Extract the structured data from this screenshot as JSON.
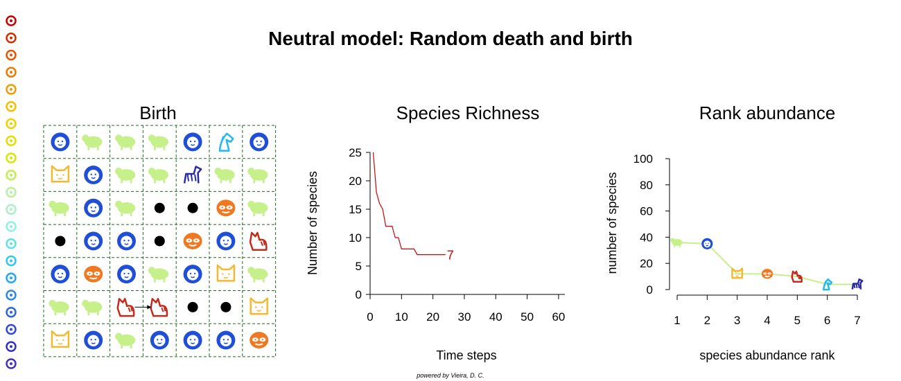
{
  "title": "Neutral model:  Random death and birth",
  "footer": "powered by Vieira, D. C.",
  "colors": {
    "grid_line": "#1b6b1b",
    "richness_line": "#cc0000",
    "rank_line": "#c6f08a"
  },
  "species_legend": {
    "colors": [
      "#cc0000",
      "#d92a00",
      "#e85500",
      "#f07a00",
      "#f59d00",
      "#f7bd00",
      "#f5d000",
      "#e8dc00",
      "#d8e600",
      "#c2ec55",
      "#b8f0a0",
      "#a8f0c8",
      "#8ef0e8",
      "#60e0f0",
      "#30c8f0",
      "#20a8f0",
      "#2a88e8",
      "#2a66e0",
      "#2d4ad8",
      "#3333cc",
      "#4433bb"
    ]
  },
  "chart_data": [
    {
      "type": "grid",
      "title": "Birth",
      "rows": 7,
      "cols": 7,
      "cells": [
        [
          "lion",
          "sheep",
          "sheep",
          "sheep",
          "lion",
          "horse",
          "lion"
        ],
        [
          "cat",
          "lion",
          "sheep",
          "sheep",
          "zebra",
          "sheep",
          "sheep"
        ],
        [
          "sheep",
          "lion",
          "sheep",
          "empty",
          "empty",
          "raccoon",
          "sheep"
        ],
        [
          "empty",
          "lion",
          "lion",
          "empty",
          "raccoon",
          "lion",
          "tiger"
        ],
        [
          "lion",
          "raccoon",
          "lion",
          "sheep",
          "lion",
          "cat",
          "sheep"
        ],
        [
          "sheep",
          "sheep",
          "tiger",
          "tiger",
          "empty",
          "empty",
          "cat"
        ],
        [
          "cat",
          "lion",
          "sheep",
          "lion",
          "lion",
          "lion",
          "raccoon"
        ]
      ],
      "birth_arrow": {
        "from": [
          5,
          2
        ],
        "to": [
          5,
          3
        ]
      }
    },
    {
      "type": "line",
      "title": "Species Richness",
      "xlabel": "Time steps",
      "ylabel": "Number of species",
      "xlim": [
        0,
        62
      ],
      "ylim": [
        0,
        25
      ],
      "xticks": [
        0,
        10,
        20,
        30,
        40,
        50,
        60
      ],
      "yticks": [
        0,
        5,
        10,
        15,
        20,
        25
      ],
      "x": [
        1,
        2,
        3,
        4,
        5,
        6,
        7,
        8,
        9,
        10,
        11,
        12,
        13,
        14,
        15,
        16,
        17,
        18,
        19,
        20,
        21,
        22,
        23,
        24
      ],
      "y": [
        25,
        18,
        16,
        15,
        12,
        12,
        12,
        10,
        10,
        8,
        8,
        8,
        8,
        8,
        7,
        7,
        7,
        7,
        7,
        7,
        7,
        7,
        7,
        7
      ],
      "end_label": "7"
    },
    {
      "type": "line",
      "title": "Rank abundance",
      "xlabel": "species abundance rank",
      "ylabel": "number of species",
      "xlim": [
        1,
        7
      ],
      "ylim": [
        0,
        100
      ],
      "xticks": [
        1,
        2,
        3,
        4,
        5,
        6,
        7
      ],
      "yticks": [
        0,
        20,
        40,
        60,
        80,
        100
      ],
      "x": [
        1,
        2,
        3,
        4,
        5,
        6,
        7
      ],
      "y": [
        36,
        35,
        12,
        12,
        10,
        4,
        4
      ],
      "markers": [
        "sheep",
        "lion",
        "cat",
        "raccoon",
        "tiger",
        "horse",
        "zebra"
      ]
    }
  ]
}
